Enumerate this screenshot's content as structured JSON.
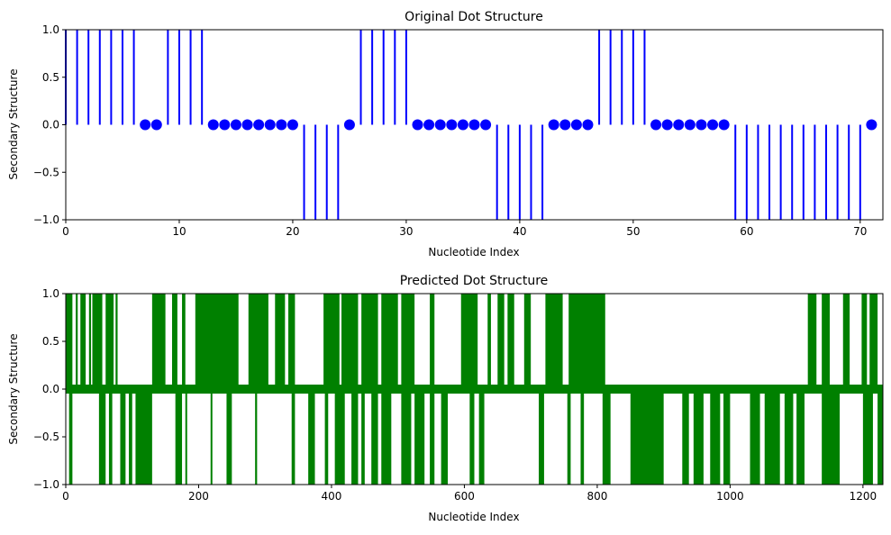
{
  "chart_data": [
    {
      "type": "stem",
      "title": "Original Dot Structure",
      "xlabel": "Nucleotide Index",
      "ylabel": "Secondary Structure",
      "xlim": [
        0,
        72
      ],
      "ylim": [
        -1,
        1
      ],
      "xticks": [
        "0",
        "10",
        "20",
        "30",
        "40",
        "50",
        "60",
        "70"
      ],
      "yticks": [
        "−1.0",
        "−0.5",
        "0.0",
        "0.5",
        "1.0"
      ],
      "color": "#0000ff",
      "grid": false,
      "x": [
        0,
        1,
        2,
        3,
        4,
        5,
        6,
        7,
        8,
        9,
        10,
        11,
        12,
        13,
        14,
        15,
        16,
        17,
        18,
        19,
        20,
        21,
        22,
        23,
        24,
        25,
        26,
        27,
        28,
        29,
        30,
        31,
        32,
        33,
        34,
        35,
        36,
        37,
        38,
        39,
        40,
        41,
        42,
        43,
        44,
        45,
        46,
        47,
        48,
        49,
        50,
        51,
        52,
        53,
        54,
        55,
        56,
        57,
        58,
        59,
        60,
        61,
        62,
        63,
        64,
        65,
        66,
        67,
        68,
        69,
        70,
        71
      ],
      "values": [
        1,
        1,
        1,
        1,
        1,
        1,
        1,
        0,
        0,
        1,
        1,
        1,
        1,
        0,
        0,
        0,
        0,
        0,
        0,
        0,
        0,
        -1,
        -1,
        -1,
        -1,
        0,
        1,
        1,
        1,
        1,
        1,
        0,
        0,
        0,
        0,
        0,
        0,
        0,
        -1,
        -1,
        -1,
        -1,
        -1,
        0,
        0,
        0,
        0,
        1,
        1,
        1,
        1,
        1,
        0,
        0,
        0,
        0,
        0,
        0,
        0,
        -1,
        -1,
        -1,
        -1,
        -1,
        -1,
        -1,
        -1,
        -1,
        -1,
        -1,
        -1,
        0
      ]
    },
    {
      "type": "stem",
      "title": "Predicted Dot Structure",
      "xlabel": "Nucleotide Index",
      "ylabel": "Secondary Structure",
      "xlim": [
        0,
        1230
      ],
      "ylim": [
        -1,
        1
      ],
      "xticks": [
        "0",
        "200",
        "400",
        "600",
        "800",
        "1000",
        "1200"
      ],
      "yticks": [
        "−1.0",
        "−0.5",
        "0.0",
        "0.5",
        "1.0"
      ],
      "color": "#008000",
      "grid": false,
      "n_points": 1230,
      "positive_ranges": [
        [
          0,
          10
        ],
        [
          15,
          18
        ],
        [
          22,
          30
        ],
        [
          35,
          38
        ],
        [
          40,
          55
        ],
        [
          60,
          72
        ],
        [
          75,
          78
        ],
        [
          130,
          150
        ],
        [
          160,
          168
        ],
        [
          175,
          180
        ],
        [
          195,
          260
        ],
        [
          275,
          305
        ],
        [
          315,
          330
        ],
        [
          335,
          345
        ],
        [
          388,
          412
        ],
        [
          415,
          440
        ],
        [
          445,
          470
        ],
        [
          475,
          500
        ],
        [
          505,
          525
        ],
        [
          548,
          555
        ],
        [
          595,
          620
        ],
        [
          635,
          640
        ],
        [
          650,
          660
        ],
        [
          665,
          675
        ],
        [
          690,
          700
        ],
        [
          722,
          748
        ],
        [
          757,
          812
        ],
        [
          1117,
          1130
        ],
        [
          1138,
          1150
        ],
        [
          1170,
          1180
        ],
        [
          1198,
          1206
        ],
        [
          1210,
          1222
        ]
      ],
      "negative_ranges": [
        [
          5,
          10
        ],
        [
          50,
          60
        ],
        [
          65,
          70
        ],
        [
          82,
          90
        ],
        [
          95,
          100
        ],
        [
          105,
          130
        ],
        [
          165,
          175
        ],
        [
          180,
          182
        ],
        [
          218,
          220
        ],
        [
          242,
          250
        ],
        [
          285,
          288
        ],
        [
          340,
          345
        ],
        [
          365,
          375
        ],
        [
          390,
          395
        ],
        [
          405,
          420
        ],
        [
          430,
          440
        ],
        [
          445,
          450
        ],
        [
          460,
          470
        ],
        [
          475,
          490
        ],
        [
          505,
          520
        ],
        [
          525,
          540
        ],
        [
          548,
          555
        ],
        [
          565,
          575
        ],
        [
          608,
          615
        ],
        [
          622,
          630
        ],
        [
          712,
          720
        ],
        [
          755,
          760
        ],
        [
          775,
          780
        ],
        [
          808,
          820
        ],
        [
          850,
          900
        ],
        [
          928,
          938
        ],
        [
          945,
          960
        ],
        [
          970,
          985
        ],
        [
          990,
          1000
        ],
        [
          1030,
          1045
        ],
        [
          1052,
          1075
        ],
        [
          1082,
          1095
        ],
        [
          1100,
          1112
        ],
        [
          1138,
          1165
        ],
        [
          1200,
          1215
        ],
        [
          1222,
          1230
        ]
      ]
    }
  ]
}
